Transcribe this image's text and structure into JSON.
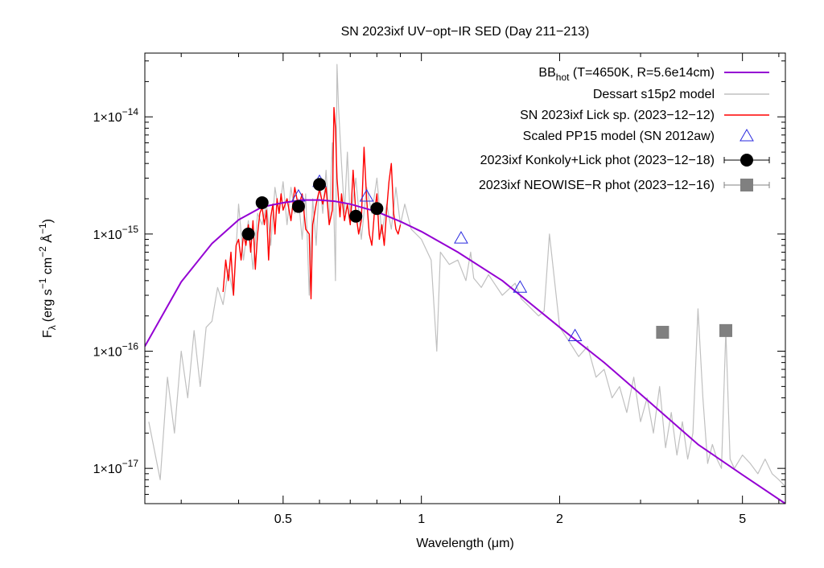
{
  "chart_data": {
    "type": "line",
    "title": "SN 2023ixf UV−opt−IR SED (Day 211−213)",
    "xlabel": "Wavelength (μm)",
    "ylabel": {
      "base": "F",
      "sub": "λ",
      "text": "(erg s",
      "sup1": "−1",
      "mid": " cm",
      "sup2": "−2",
      "mid2": " Å",
      "sup3": "−1",
      "end": ")"
    },
    "x_scale": "log",
    "y_scale": "log",
    "xlim": [
      0.25,
      6.2
    ],
    "ylim": [
      5e-18,
      3.5e-14
    ],
    "x_ticks": [
      {
        "value": 0.5,
        "label": "0.5"
      },
      {
        "value": 1,
        "label": "1"
      },
      {
        "value": 2,
        "label": "2"
      },
      {
        "value": 5,
        "label": "5"
      }
    ],
    "y_ticks": [
      {
        "value": 1e-17,
        "mant": "1×10",
        "exp": "−17"
      },
      {
        "value": 1e-16,
        "mant": "1×10",
        "exp": "−16"
      },
      {
        "value": 1e-15,
        "mant": "1×10",
        "exp": "−15"
      },
      {
        "value": 1e-14,
        "mant": "1×10",
        "exp": "−14"
      }
    ],
    "grid": false,
    "legend_position": "top-right",
    "series": [
      {
        "name": "BB",
        "name_sub": "hot",
        "name_rest": " (T=4650K, R=5.6e14cm)",
        "kind": "line",
        "color": "#9400d3",
        "x": [
          0.25,
          0.3,
          0.35,
          0.4,
          0.45,
          0.5,
          0.55,
          0.6,
          0.65,
          0.7,
          0.8,
          0.9,
          1.0,
          1.2,
          1.5,
          2.0,
          2.5,
          3.0,
          4.0,
          5.0,
          6.2
        ],
        "y": [
          1.1e-16,
          3.9e-16,
          8.3e-16,
          1.32e-15,
          1.7e-15,
          1.85e-15,
          1.95e-15,
          1.95e-15,
          1.9e-15,
          1.8e-15,
          1.55e-15,
          1.28e-15,
          1.05e-15,
          7e-16,
          4e-16,
          1.6e-16,
          8e-17,
          4.3e-17,
          1.6e-17,
          8.8e-18,
          5e-18
        ]
      },
      {
        "name": "Dessart s15p2 model",
        "kind": "line",
        "color": "#c0c0c0",
        "x": [
          0.255,
          0.27,
          0.28,
          0.29,
          0.3,
          0.31,
          0.32,
          0.33,
          0.34,
          0.35,
          0.36,
          0.37,
          0.38,
          0.39,
          0.4,
          0.41,
          0.42,
          0.43,
          0.44,
          0.45,
          0.46,
          0.47,
          0.48,
          0.49,
          0.5,
          0.51,
          0.52,
          0.53,
          0.54,
          0.55,
          0.56,
          0.57,
          0.58,
          0.59,
          0.6,
          0.61,
          0.62,
          0.63,
          0.64,
          0.65,
          0.655,
          0.66,
          0.67,
          0.68,
          0.69,
          0.7,
          0.72,
          0.74,
          0.76,
          0.78,
          0.8,
          0.82,
          0.84,
          0.86,
          0.88,
          0.9,
          0.92,
          0.95,
          1.0,
          1.05,
          1.08,
          1.1,
          1.15,
          1.2,
          1.25,
          1.28,
          1.3,
          1.35,
          1.4,
          1.5,
          1.6,
          1.65,
          1.7,
          1.8,
          1.85,
          1.9,
          2.0,
          2.1,
          2.2,
          2.3,
          2.4,
          2.5,
          2.6,
          2.7,
          2.8,
          2.9,
          3.0,
          3.1,
          3.2,
          3.3,
          3.4,
          3.5,
          3.6,
          3.7,
          3.8,
          3.9,
          4.0,
          4.1,
          4.2,
          4.3,
          4.4,
          4.5,
          4.6,
          4.7,
          4.8,
          5.0,
          5.2,
          5.4,
          5.6,
          5.8,
          6.0,
          6.2
        ],
        "y": [
          2.5e-17,
          8e-18,
          6e-17,
          2e-17,
          1e-16,
          4e-17,
          1.5e-16,
          5e-17,
          1.6e-16,
          1.8e-16,
          3.5e-16,
          2.5e-16,
          5e-16,
          3e-16,
          1.8e-15,
          6e-16,
          1.3e-15,
          5e-16,
          1.5e-15,
          1.2e-15,
          1.8e-15,
          8e-16,
          2.5e-15,
          1.5e-15,
          2.8e-15,
          1.2e-15,
          2.5e-15,
          1.5e-15,
          2e-15,
          9e-16,
          2.2e-15,
          3e-16,
          2e-15,
          8e-16,
          3e-15,
          1.5e-15,
          3.5e-15,
          1.2e-15,
          6e-15,
          4e-16,
          2.8e-14,
          1.2e-14,
          4e-15,
          1.5e-15,
          5e-15,
          1.3e-15,
          3e-15,
          9e-16,
          2.5e-15,
          1.5e-15,
          3e-15,
          1e-15,
          1.8e-15,
          1.1e-15,
          2.5e-15,
          1.2e-15,
          1.8e-15,
          1.1e-15,
          9e-16,
          6e-16,
          1e-16,
          7e-16,
          5.5e-16,
          6e-16,
          4e-16,
          7e-16,
          4.2e-16,
          3.5e-16,
          4.5e-16,
          3e-16,
          3.8e-16,
          2.8e-16,
          2.5e-16,
          2e-16,
          2.2e-16,
          1e-15,
          1.6e-16,
          1.2e-16,
          9e-17,
          1.1e-16,
          6e-17,
          7e-17,
          4e-17,
          5e-17,
          3e-17,
          6e-17,
          2.5e-17,
          4e-17,
          2e-17,
          5e-17,
          1.5e-17,
          3e-17,
          1.3e-17,
          2.5e-17,
          1.2e-17,
          2e-17,
          2.3e-16,
          4e-17,
          1.1e-17,
          1.6e-17,
          1.2e-17,
          1e-17,
          1.5e-16,
          1.2e-17,
          1e-17,
          1.3e-17,
          1.1e-17,
          9e-18,
          1.2e-17,
          9e-18,
          8e-18,
          7e-18
        ]
      },
      {
        "name": "SN 2023ixf Lick sp. (2023−12−12)",
        "kind": "line",
        "color": "#ff0000",
        "x": [
          0.37,
          0.375,
          0.38,
          0.385,
          0.39,
          0.395,
          0.4,
          0.405,
          0.41,
          0.415,
          0.42,
          0.425,
          0.43,
          0.435,
          0.44,
          0.445,
          0.45,
          0.455,
          0.46,
          0.465,
          0.47,
          0.475,
          0.48,
          0.485,
          0.49,
          0.495,
          0.5,
          0.51,
          0.52,
          0.53,
          0.54,
          0.55,
          0.56,
          0.57,
          0.575,
          0.58,
          0.59,
          0.6,
          0.61,
          0.62,
          0.63,
          0.64,
          0.645,
          0.65,
          0.655,
          0.66,
          0.665,
          0.67,
          0.68,
          0.69,
          0.7,
          0.71,
          0.72,
          0.73,
          0.74,
          0.75,
          0.76,
          0.77,
          0.78,
          0.79,
          0.8,
          0.81,
          0.82,
          0.83,
          0.84,
          0.85,
          0.86,
          0.87,
          0.88,
          0.89,
          0.9
        ],
        "y": [
          3.2e-16,
          6e-16,
          4e-16,
          7e-16,
          3e-16,
          8e-16,
          9e-16,
          6e-16,
          1e-15,
          8e-16,
          1.2e-15,
          7e-16,
          1.3e-15,
          5e-16,
          1e-15,
          1.5e-15,
          1.7e-15,
          1.2e-15,
          1.6e-15,
          6e-16,
          1.4e-15,
          1.8e-15,
          1e-15,
          2e-15,
          1.5e-15,
          2.2e-15,
          1.6e-15,
          2e-15,
          1.3e-15,
          2.5e-15,
          1.7e-15,
          2.2e-15,
          1.1e-15,
          1e-15,
          2.8e-16,
          1.2e-15,
          1.8e-15,
          2.4e-15,
          1.8e-15,
          2.5e-15,
          1.2e-15,
          1.6e-15,
          1.2e-14,
          8e-15,
          3e-15,
          2e-15,
          1.4e-15,
          2.2e-15,
          1.3e-15,
          1.8e-15,
          1.2e-15,
          3.5e-15,
          1.5e-15,
          1e-15,
          1.3e-15,
          5.5e-15,
          2e-15,
          1e-15,
          8e-16,
          1.5e-15,
          2.2e-15,
          9e-16,
          1.2e-15,
          8e-16,
          1.6e-15,
          2.8e-15,
          4e-15,
          1.5e-15,
          1.1e-15,
          1e-15,
          1.2e-15
        ]
      },
      {
        "name": "Scaled PP15 model (SN 2012aw)",
        "kind": "scatter",
        "marker": "triangle-open",
        "color": "#2a2adf",
        "x": [
          0.54,
          0.6,
          0.76,
          1.22,
          1.64,
          2.16
        ],
        "y": [
          2.1e-15,
          2.8e-15,
          2.1e-15,
          9.2e-16,
          3.5e-16,
          1.35e-16
        ]
      },
      {
        "name": "2023ixf Konkoly+Lick phot (2023−12−18)",
        "kind": "scatter",
        "marker": "circle-filled",
        "color": "#000000",
        "x": [
          0.42,
          0.45,
          0.54,
          0.6,
          0.72,
          0.8
        ],
        "y": [
          1e-15,
          1.85e-15,
          1.72e-15,
          2.65e-15,
          1.42e-15,
          1.65e-15
        ]
      },
      {
        "name": "2023ixf NEOWISE−R phot (2023−12−16)",
        "kind": "scatter",
        "marker": "square-filled",
        "color": "#808080",
        "x": [
          3.35,
          4.6
        ],
        "y": [
          1.45e-16,
          1.5e-16
        ]
      }
    ]
  }
}
